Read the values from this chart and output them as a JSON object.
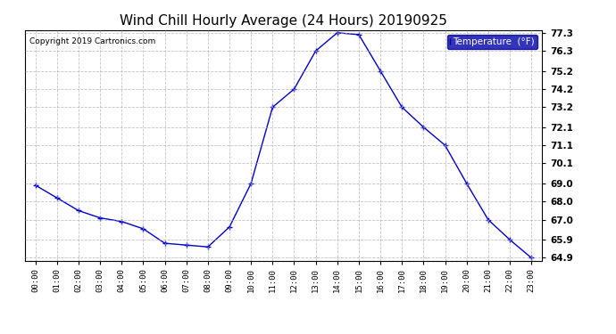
{
  "title": "Wind Chill Hourly Average (24 Hours) 20190925",
  "copyright": "Copyright 2019 Cartronics.com",
  "legend_label": "Temperature  (°F)",
  "hours": [
    "00:00",
    "01:00",
    "02:00",
    "03:00",
    "04:00",
    "05:00",
    "06:00",
    "07:00",
    "08:00",
    "09:00",
    "10:00",
    "11:00",
    "12:00",
    "13:00",
    "14:00",
    "15:00",
    "16:00",
    "17:00",
    "18:00",
    "19:00",
    "20:00",
    "21:00",
    "22:00",
    "23:00"
  ],
  "values": [
    68.9,
    68.2,
    67.5,
    67.1,
    66.9,
    66.5,
    65.7,
    65.6,
    65.5,
    66.6,
    69.0,
    73.2,
    74.2,
    76.3,
    77.3,
    77.2,
    75.2,
    73.2,
    72.1,
    71.1,
    69.0,
    67.0,
    65.9,
    64.9
  ],
  "yticks": [
    64.9,
    65.9,
    67.0,
    68.0,
    69.0,
    70.1,
    71.1,
    72.1,
    73.2,
    74.2,
    75.2,
    76.3,
    77.3
  ],
  "line_color": "#0000cc",
  "marker": "+",
  "bg_color": "#ffffff",
  "plot_bg_color": "#ffffff",
  "grid_color": "#aaaaaa",
  "title_fontsize": 11,
  "legend_bg": "#0000aa",
  "legend_text_color": "#ffffff"
}
